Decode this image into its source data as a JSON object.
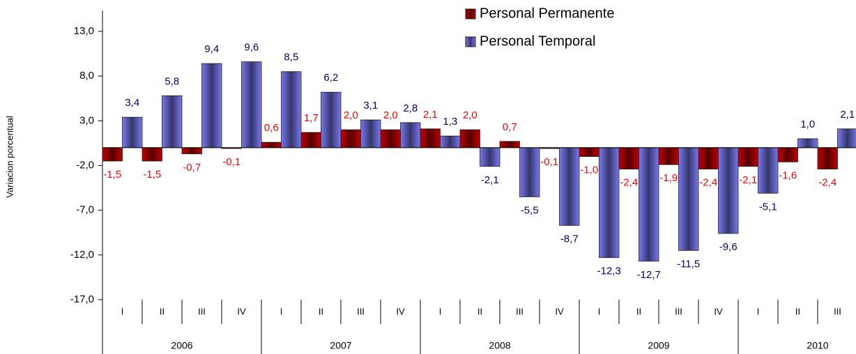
{
  "chart_data": {
    "type": "bar",
    "y_label": "Variacion porcentual",
    "categories": [
      "I",
      "II",
      "III",
      "IV",
      "I",
      "II",
      "III",
      "IV",
      "I",
      "II",
      "III",
      "IV",
      "I",
      "II",
      "III",
      "IV",
      "I",
      "II",
      "III"
    ],
    "year_labels": [
      "2006",
      "2007",
      "2008",
      "2009",
      "2010"
    ],
    "series": [
      {
        "name": "Personal Permanente",
        "color": "#c00000",
        "label_color": "#ff0000",
        "values": [
          -1.5,
          -1.5,
          -0.7,
          -0.1,
          0.6,
          1.7,
          2.0,
          2.0,
          2.1,
          2.0,
          0.7,
          -0.1,
          -1.0,
          -2.4,
          -1.9,
          -2.4,
          -2.1,
          -1.6,
          -2.4
        ],
        "value_labels": [
          "-1,5",
          "-1,5",
          "-0,7",
          "-0,1",
          "0,6",
          "1,7",
          "2,0",
          "2,0",
          "2,1",
          "2,0",
          "0,7",
          "-0,1",
          "-1,0",
          "-2,4",
          "-1,9",
          "-2,4",
          "-2,1",
          "-1,6",
          "-2,4"
        ]
      },
      {
        "name": "Personal Temporal",
        "color": "#7878f0",
        "label_color": "#000080",
        "values": [
          3.4,
          5.8,
          9.4,
          9.6,
          8.5,
          6.2,
          3.1,
          2.8,
          1.3,
          -2.1,
          -5.5,
          -8.7,
          -12.3,
          -12.7,
          -11.5,
          -9.6,
          -5.1,
          1.0,
          2.1
        ],
        "value_labels": [
          "3,4",
          "5,8",
          "9,4",
          "9,6",
          "8,5",
          "6,2",
          "3,1",
          "2,8",
          "1,3",
          "-2,1",
          "-5,5",
          "-8,7",
          "-12,3",
          "-12,7",
          "-11,5",
          "-9,6",
          "-5,1",
          "1,0",
          "2,1"
        ]
      }
    ],
    "ylim": [
      -17,
      15.3
    ],
    "yticks": [
      {
        "value": 13,
        "label": "13,0"
      },
      {
        "value": 8,
        "label": "8,0"
      },
      {
        "value": 3,
        "label": "3,0"
      },
      {
        "value": -2,
        "label": "-2,0"
      },
      {
        "value": -7,
        "label": "-7,0"
      },
      {
        "value": -12,
        "label": "-12,0"
      },
      {
        "value": -17,
        "label": "-17,0"
      }
    ],
    "legend": "top-right"
  }
}
